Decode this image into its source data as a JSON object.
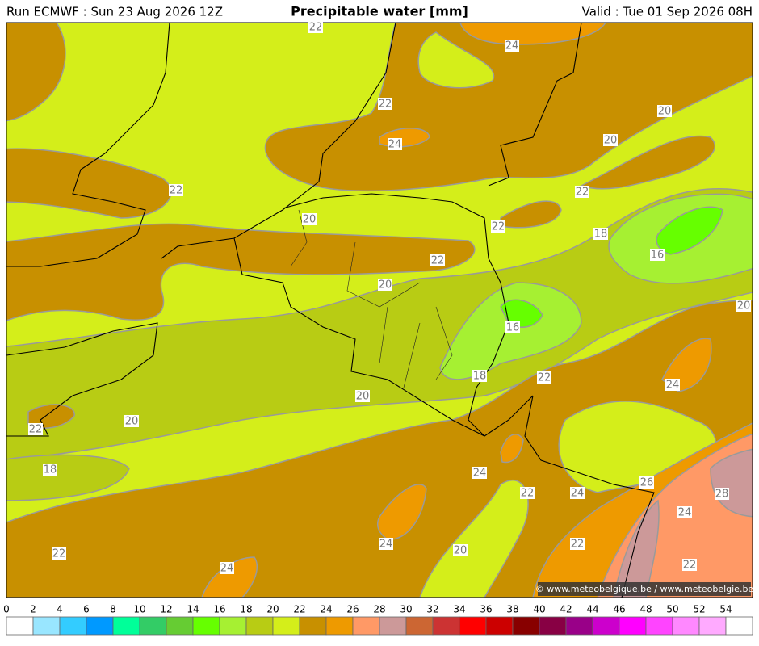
{
  "header": {
    "run": "Run ECMWF : Sun 23 Aug 2026 12Z",
    "title": "Precipitable water [mm]",
    "valid": "Valid : Tue 01 Sep 2026 08H"
  },
  "map": {
    "contour_labels": [
      22,
      24,
      22,
      24,
      20,
      20,
      22,
      22,
      20,
      22,
      18,
      22,
      16,
      20,
      20,
      16,
      18,
      22,
      24,
      20,
      20,
      22,
      18,
      24,
      26,
      22,
      24,
      28,
      24,
      24,
      22,
      20,
      22,
      24,
      22
    ]
  },
  "colorbar": {
    "ticks": [
      0,
      2,
      4,
      6,
      8,
      10,
      12,
      14,
      16,
      18,
      20,
      22,
      24,
      26,
      28,
      30,
      32,
      34,
      36,
      38,
      40,
      42,
      44,
      46,
      48,
      50,
      52,
      54
    ],
    "colors": [
      "#ffffff",
      "#99e6ff",
      "#33ccff",
      "#0099ff",
      "#00ff99",
      "#33cc66",
      "#66cc33",
      "#66ff00",
      "#a6f032",
      "#b8cc14",
      "#d4ee1a",
      "#c89000",
      "#ee9a00",
      "#ff9966",
      "#cc9999",
      "#cc6633",
      "#cc3333",
      "#ff0000",
      "#cc0000",
      "#880000",
      "#880044",
      "#990088",
      "#cc00cc",
      "#ff00ff",
      "#ff44ff",
      "#ff88ff",
      "#ffaaff",
      "#ffffff"
    ]
  },
  "credit": "© www.meteobelgique.be / www.meteobelgie.be"
}
